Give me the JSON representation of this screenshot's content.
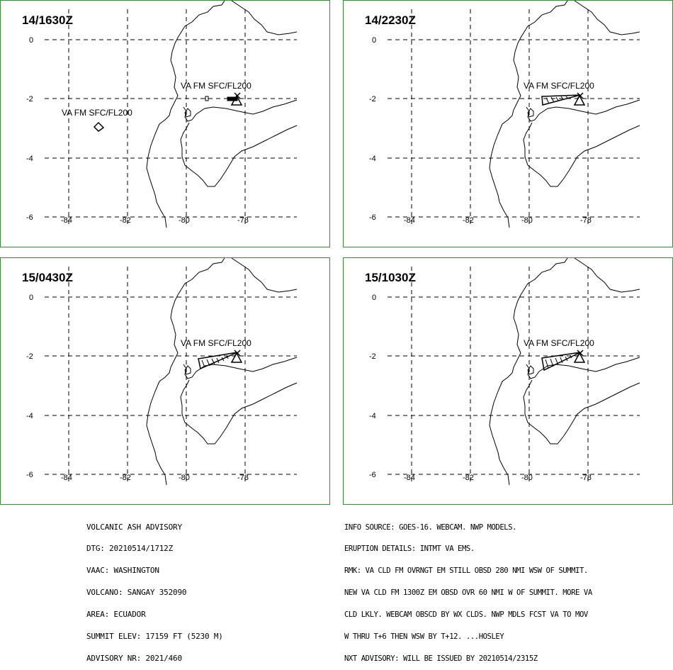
{
  "panels": [
    {
      "time": "14/1630Z",
      "labels": [
        "VA FM SFC/FL200",
        "VA FM SFC/FL200"
      ]
    },
    {
      "time": "14/2230Z",
      "labels": [
        "VA FM SFC/FL200"
      ]
    },
    {
      "time": "15/0430Z",
      "labels": [
        "VA FM SFC/FL200"
      ]
    },
    {
      "time": "15/1030Z",
      "labels": [
        "VA FM SFC/FL200"
      ]
    }
  ],
  "axes": {
    "lat_ticks": [
      "0",
      "-2",
      "-4",
      "-6"
    ],
    "lon_ticks": [
      "-84",
      "-82",
      "-80",
      "-78"
    ]
  },
  "advisory_left": {
    "line1": "VOLCANIC ASH ADVISORY",
    "line2": "DTG: 20210514/1712Z",
    "line3": "VAAC: WASHINGTON",
    "line4": "VOLCANO: SANGAY 352090",
    "line5": "AREA: ECUADOR",
    "line6": "SUMMIT ELEV: 17159 FT (5230 M)",
    "line7": "ADVISORY NR: 2021/460"
  },
  "advisory_right": {
    "line1": "INFO SOURCE: GOES-16. WEBCAM. NWP MODELS.",
    "line2": "ERUPTION DETAILS: INTMT VA EMS.",
    "line3": "RMK: VA CLD FM OVRNGT EM STILL OBSD 280 NMI WSW OF SUMMIT.",
    "line4": "NEW VA CLD FM 1300Z EM OBSD OVR 60 NMI W OF SUMMIT. MORE VA",
    "line5": "CLD LKLY. WEBCAM OBSCD BY WX CLDS. NWP MDLS FCST VA TO MOV",
    "line6": "W THRU T+6 THEN WSW BY T+12. ...HOSLEY",
    "line7": "NXT ADVISORY: WILL BE ISSUED BY 20210514/2315Z"
  }
}
